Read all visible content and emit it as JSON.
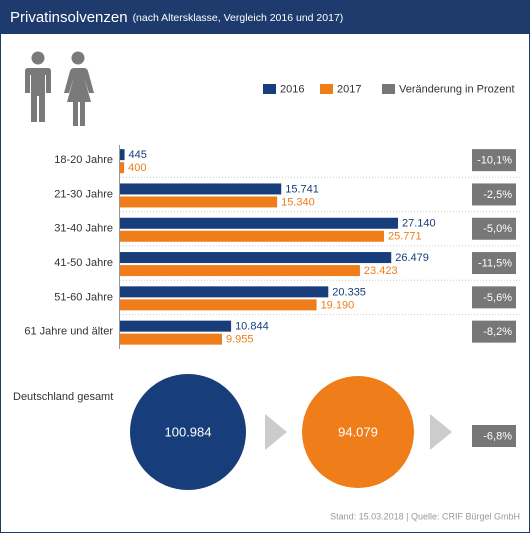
{
  "chart_data": {
    "type": "bar",
    "orientation": "horizontal",
    "title": "Privatinsolvenzen",
    "subtitle": "(nach Altersklasse, Vergleich 2016 und 2017)",
    "categories": [
      "18-20 Jahre",
      "21-30 Jahre",
      "31-40 Jahre",
      "41-50 Jahre",
      "51-60 Jahre",
      "61 Jahre und älter"
    ],
    "series": [
      {
        "name": "2016",
        "color": "#173d7a",
        "values": [
          445,
          15741,
          27140,
          26479,
          20335,
          10844
        ],
        "value_labels": [
          "445",
          "15.741",
          "27.140",
          "26.479",
          "20.335",
          "10.844"
        ]
      },
      {
        "name": "2017",
        "color": "#ef7d1a",
        "values": [
          400,
          15340,
          25771,
          23423,
          19190,
          9955
        ],
        "value_labels": [
          "400",
          "15.340",
          "25.771",
          "23.423",
          "19.190",
          "9.955"
        ]
      }
    ],
    "change": {
      "name": "Veränderung in Prozent",
      "color": "#777777",
      "values": [
        -10.1,
        -2.5,
        -5.0,
        -11.5,
        -5.6,
        -8.2
      ],
      "value_labels": [
        "-10,1%",
        "-2,5%",
        "-5,0%",
        "-11,5%",
        "-5,6%",
        "-8,2%"
      ]
    },
    "total": {
      "label": "Deutschland gesamt",
      "values": [
        100984,
        94079
      ],
      "value_labels": [
        "100.984",
        "94.079"
      ],
      "change": -6.8,
      "change_label": "-6,8%"
    },
    "source": "Stand: 15.03.2018 | Quelle: CRIF Bürgel GmbH"
  }
}
